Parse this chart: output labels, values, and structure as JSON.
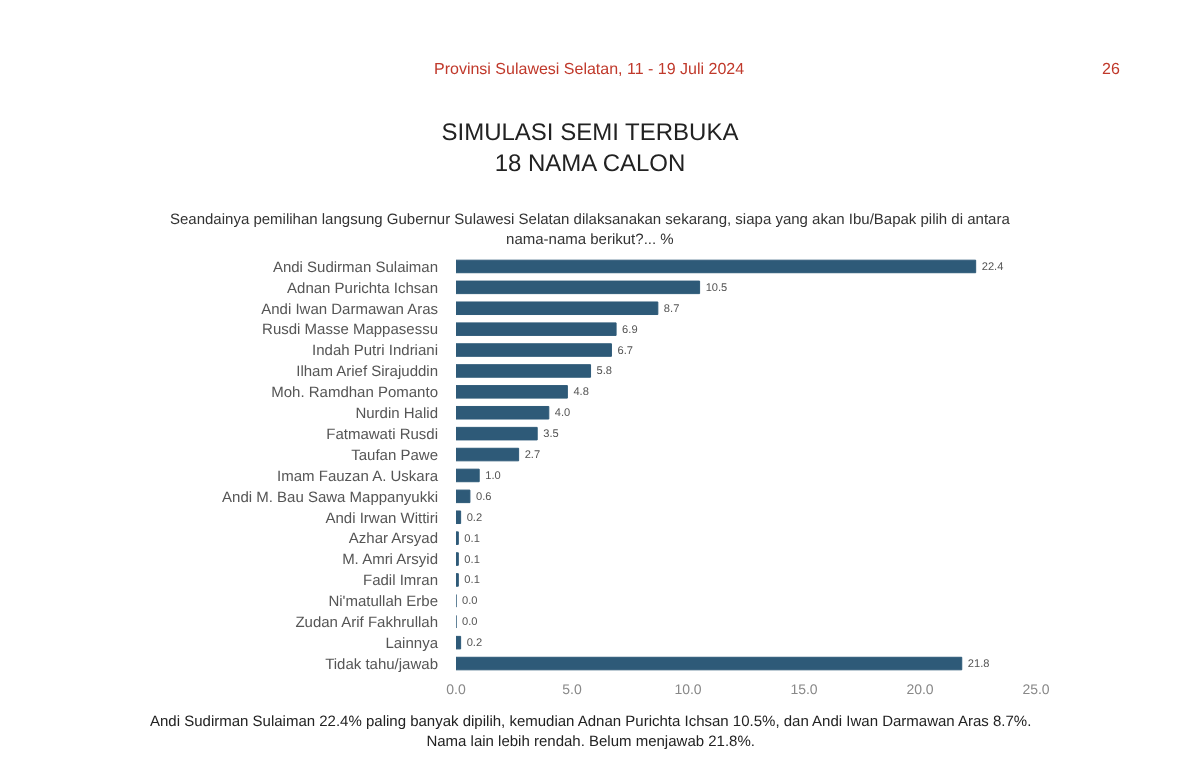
{
  "chart_data": {
    "type": "bar",
    "orientation": "horizontal",
    "title": "SIMULASI SEMI TERBUKA\n18 NAMA CALON",
    "subtitle": "Seandainya pemilihan langsung Gubernur Sulawesi Selatan dilaksanakan sekarang, siapa yang akan Ibu/Bapak pilih di antara\nnama-nama berikut?... %",
    "categories": [
      "Andi Sudirman Sulaiman",
      "Adnan Purichta Ichsan",
      "Andi Iwan Darmawan Aras",
      "Rusdi Masse Mappasessu",
      "Indah Putri Indriani",
      "Ilham Arief Sirajuddin",
      "Moh. Ramdhan Pomanto",
      "Nurdin Halid",
      "Fatmawati Rusdi",
      "Taufan Pawe",
      "Imam Fauzan A. Uskara",
      "Andi M. Bau Sawa Mappanyukki",
      "Andi Irwan Wittiri",
      "Azhar Arsyad",
      "M. Amri Arsyid",
      "Fadil Imran",
      "Ni'matullah Erbe",
      "Zudan Arif Fakhrullah",
      "Lainnya",
      "Tidak tahu/jawab"
    ],
    "values": [
      22.4,
      10.5,
      8.7,
      6.9,
      6.7,
      5.8,
      4.8,
      4.0,
      3.5,
      2.7,
      1.0,
      0.6,
      0.2,
      0.1,
      0.1,
      0.1,
      0.0,
      0.0,
      0.2,
      21.8
    ],
    "value_labels": [
      "22.4",
      "10.5",
      "8.7",
      "6.9",
      "6.7",
      "5.8",
      "4.8",
      "4.0",
      "3.5",
      "2.7",
      "1.0",
      "0.6",
      "0.2",
      "0.1",
      "0.1",
      "0.1",
      "0.0",
      "0.0",
      "0.2",
      "21.8"
    ],
    "color": "#2e5a78",
    "xlim": [
      0,
      25
    ],
    "xticks": [
      {
        "value": 0,
        "label": "0.0"
      },
      {
        "value": 5,
        "label": "5.0"
      },
      {
        "value": 10,
        "label": "10.0"
      },
      {
        "value": 15,
        "label": "15.0"
      },
      {
        "value": 20,
        "label": "20.0"
      },
      {
        "value": 25,
        "label": "25.0"
      }
    ],
    "legend": false,
    "annotations": [
      "Provinsi Sulawesi Selatan, 11 - 19 Juli 2024",
      "26",
      "Andi Sudirman Sulaiman 22.4% paling banyak dipilih, kemudian Adnan Purichta Ichsan 10.5%, dan Andi Iwan Darmawan Aras 8.7%.\nNama lain lebih rendah. Belum menjawab 21.8%."
    ]
  }
}
